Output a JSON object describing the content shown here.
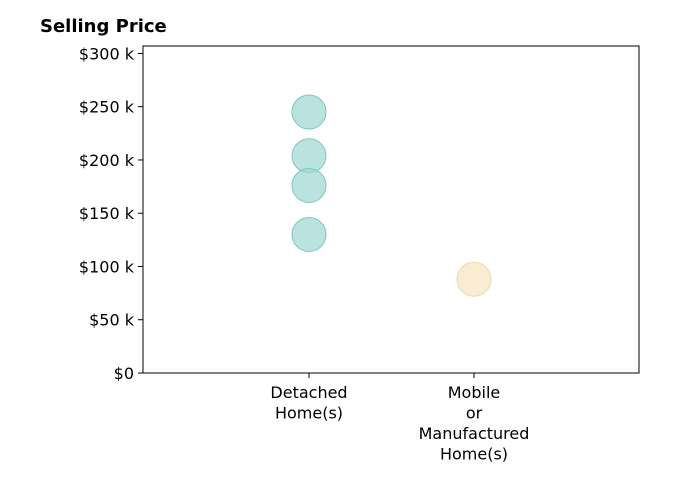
{
  "chart_data": {
    "type": "scatter",
    "title": "Selling Price",
    "xlabel": "",
    "ylabel": "",
    "categories": [
      [
        "Detached",
        "Home(s)"
      ],
      [
        "Mobile",
        "or",
        "Manufactured",
        "Home(s)"
      ]
    ],
    "ylim": [
      0,
      307000
    ],
    "y_ticks": [
      {
        "value": 0,
        "label": "$0"
      },
      {
        "value": 50000,
        "label": "$50 k"
      },
      {
        "value": 100000,
        "label": "$100 k"
      },
      {
        "value": 150000,
        "label": "$150 k"
      },
      {
        "value": 200000,
        "label": "$200 k"
      },
      {
        "value": 250000,
        "label": "$250 k"
      },
      {
        "value": 300000,
        "label": "$300 k"
      }
    ],
    "points": [
      {
        "category": 0,
        "value": 245000,
        "color": "#a3d8d3"
      },
      {
        "category": 0,
        "value": 204000,
        "color": "#a3d8d3"
      },
      {
        "category": 0,
        "value": 176000,
        "color": "#a3d8d3"
      },
      {
        "category": 0,
        "value": 130000,
        "color": "#a3d8d3"
      },
      {
        "category": 1,
        "value": 88000,
        "color": "#f7e6c4"
      }
    ],
    "grid": false,
    "legend": "none"
  }
}
